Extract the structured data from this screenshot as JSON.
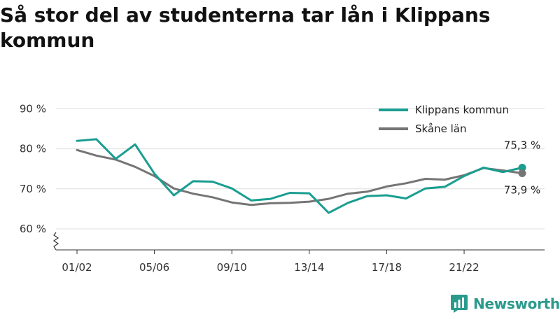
{
  "title": "Så stor del av studenterna tar lån i Klippans kommun",
  "brand": {
    "name": "Newsworthy"
  },
  "colors": {
    "klippan": "#1a9e90",
    "skane": "#757575",
    "grid": "#dddddd",
    "brand": "#2a9a8c"
  },
  "chart_data": {
    "type": "line",
    "categories": [
      "01/02",
      "02/03",
      "03/04",
      "04/05",
      "05/06",
      "06/07",
      "07/08",
      "08/09",
      "09/10",
      "10/11",
      "11/12",
      "12/13",
      "13/14",
      "14/15",
      "15/16",
      "16/17",
      "17/18",
      "18/19",
      "19/20",
      "20/21",
      "21/22",
      "22/23",
      "23/24",
      "24/25"
    ],
    "x_tick_labels": [
      "01/02",
      "05/06",
      "09/10",
      "13/14",
      "17/18",
      "21/22"
    ],
    "y_tick_labels": [
      "60 %",
      "70 %",
      "80 %",
      "90 %"
    ],
    "ylim": [
      55,
      90
    ],
    "y_axis_break": true,
    "grid": true,
    "legend_position": "top-right",
    "series": [
      {
        "name": "Klippans kommun",
        "color": "#1a9e90",
        "end_label": "75,3 %",
        "values": [
          82.0,
          82.4,
          77.5,
          81.1,
          73.8,
          68.4,
          71.9,
          71.8,
          70.1,
          67.1,
          67.5,
          69.0,
          68.9,
          64.0,
          66.5,
          68.2,
          68.4,
          67.6,
          70.1,
          70.5,
          73.2,
          75.3,
          74.2,
          75.3
        ]
      },
      {
        "name": "Skåne län",
        "color": "#757575",
        "end_label": "73,9 %",
        "values": [
          79.7,
          78.3,
          77.3,
          75.5,
          73.2,
          70.1,
          68.8,
          67.9,
          66.6,
          66.0,
          66.4,
          66.5,
          66.8,
          67.5,
          68.8,
          69.3,
          70.6,
          71.4,
          72.5,
          72.3,
          73.4,
          75.2,
          74.6,
          73.9
        ]
      }
    ]
  }
}
